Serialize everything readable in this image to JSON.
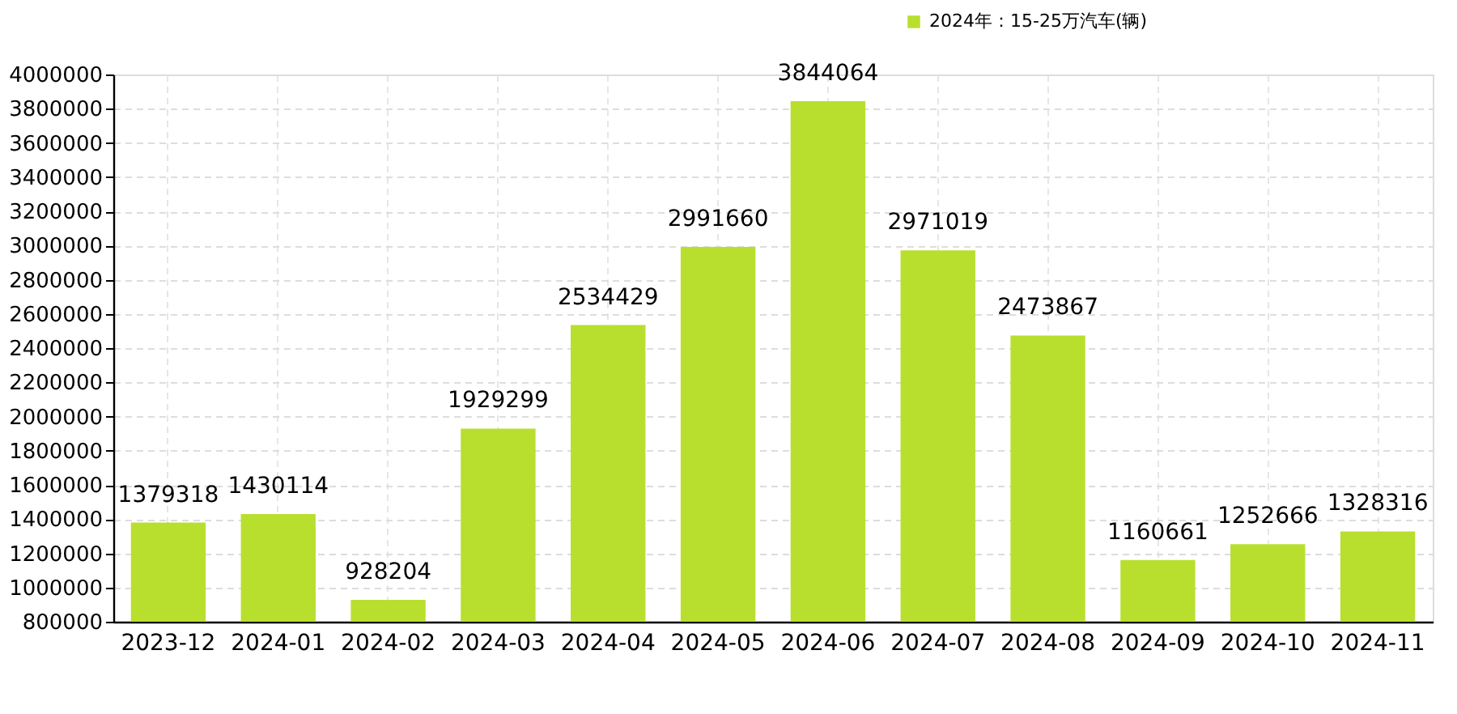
{
  "chart_data": {
    "type": "bar",
    "categories": [
      "2023-12",
      "2024-01",
      "2024-02",
      "2024-03",
      "2024-04",
      "2024-05",
      "2024-06",
      "2024-07",
      "2024-08",
      "2024-09",
      "2024-10",
      "2024-11"
    ],
    "series": [
      {
        "name": "2024年：15-25万汽车(辆)",
        "color": "#b8df2e",
        "values": [
          1379318,
          1430114,
          928204,
          1929299,
          2534429,
          2991660,
          3844064,
          2971019,
          2473867,
          1160661,
          1252666,
          1328316
        ]
      }
    ],
    "ylim": [
      800000,
      4000000
    ],
    "yticks": [
      800000,
      1000000,
      1200000,
      1400000,
      1600000,
      1800000,
      2000000,
      2200000,
      2400000,
      2600000,
      2800000,
      3000000,
      3200000,
      3400000,
      3600000,
      3800000,
      4000000
    ],
    "grid": true,
    "legend": "top right",
    "data_labels": true
  }
}
